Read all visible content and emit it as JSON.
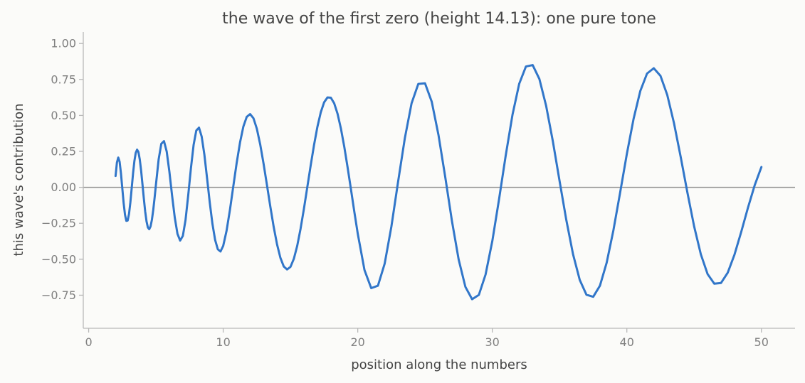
{
  "chart_data": {
    "type": "line",
    "title": "the wave of the first zero (height 14.13): one pure tone",
    "xlabel": "position along the numbers",
    "ylabel": "this wave's contribution",
    "xlim": [
      -0.4,
      52.5
    ],
    "ylim": [
      -0.98,
      1.08
    ],
    "xticks": [
      0,
      10,
      20,
      30,
      40,
      50
    ],
    "xtick_labels": [
      "0",
      "10",
      "20",
      "30",
      "40",
      "50"
    ],
    "yticks": [
      1.0,
      0.75,
      0.5,
      0.25,
      0.0,
      -0.25,
      -0.5,
      -0.75
    ],
    "ytick_labels": [
      "1.00",
      "0.75",
      "0.50",
      "0.25",
      "0.00",
      "−0.25",
      "−0.50",
      "−0.75"
    ],
    "reference_line": {
      "y": 0,
      "color": "#909090"
    },
    "grid": false,
    "series": [
      {
        "color": "#3176c9",
        "x": [
          2.0,
          2.1,
          2.2,
          2.3,
          2.4,
          2.5,
          2.6,
          2.7,
          2.8,
          2.9,
          3.0,
          3.1,
          3.2,
          3.3,
          3.4,
          3.5,
          3.6,
          3.7,
          3.8,
          3.9,
          4.0,
          4.1,
          4.2,
          4.3,
          4.4,
          4.5,
          4.6,
          4.7,
          4.8,
          4.9,
          5.0,
          5.2,
          5.4,
          5.6,
          5.8,
          6.0,
          6.2,
          6.4,
          6.6,
          6.8,
          7.0,
          7.2,
          7.4,
          7.6,
          7.8,
          8.0,
          8.2,
          8.4,
          8.6,
          8.8,
          9.0,
          9.2,
          9.4,
          9.6,
          9.8,
          10.0,
          10.25,
          10.5,
          10.75,
          11.0,
          11.25,
          11.5,
          11.75,
          12.0,
          12.25,
          12.5,
          12.75,
          13.0,
          13.25,
          13.5,
          13.75,
          14.0,
          14.25,
          14.5,
          14.75,
          15.0,
          15.25,
          15.5,
          15.75,
          16.0,
          16.25,
          16.5,
          16.75,
          17.0,
          17.25,
          17.5,
          17.75,
          18.0,
          18.25,
          18.5,
          18.75,
          19.0,
          19.25,
          19.5,
          19.75,
          20.0,
          20.5,
          21.0,
          21.5,
          22.0,
          22.5,
          23.0,
          23.5,
          24.0,
          24.5,
          25.0,
          25.5,
          26.0,
          26.5,
          27.0,
          27.5,
          28.0,
          28.5,
          29.0,
          29.5,
          30.0,
          30.5,
          31.0,
          31.5,
          32.0,
          32.5,
          33.0,
          33.5,
          34.0,
          34.5,
          35.0,
          35.5,
          36.0,
          36.5,
          37.0,
          37.5,
          38.0,
          38.5,
          39.0,
          39.5,
          40.0,
          40.5,
          41.0,
          41.5,
          42.0,
          42.5,
          43.0,
          43.5,
          44.0,
          44.5,
          45.0,
          45.5,
          46.0,
          46.5,
          47.0,
          47.5,
          48.0,
          48.5,
          49.0,
          49.5,
          50.0
        ],
        "y": [
          0.079,
          0.172,
          0.207,
          0.178,
          0.098,
          -0.006,
          -0.109,
          -0.19,
          -0.233,
          -0.231,
          -0.185,
          -0.105,
          -0.005,
          0.097,
          0.183,
          0.24,
          0.262,
          0.245,
          0.193,
          0.115,
          0.02,
          -0.077,
          -0.167,
          -0.236,
          -0.279,
          -0.291,
          -0.272,
          -0.226,
          -0.158,
          -0.074,
          0.018,
          0.193,
          0.303,
          0.321,
          0.249,
          0.109,
          -0.057,
          -0.21,
          -0.323,
          -0.37,
          -0.338,
          -0.227,
          -0.055,
          0.132,
          0.295,
          0.395,
          0.415,
          0.353,
          0.228,
          0.064,
          -0.105,
          -0.254,
          -0.366,
          -0.431,
          -0.446,
          -0.407,
          -0.302,
          -0.157,
          0.007,
          0.169,
          0.312,
          0.423,
          0.49,
          0.509,
          0.48,
          0.407,
          0.298,
          0.164,
          0.017,
          -0.133,
          -0.274,
          -0.396,
          -0.49,
          -0.55,
          -0.571,
          -0.553,
          -0.497,
          -0.407,
          -0.288,
          -0.149,
          0.001,
          0.151,
          0.294,
          0.42,
          0.521,
          0.591,
          0.625,
          0.623,
          0.584,
          0.511,
          0.408,
          0.281,
          0.136,
          -0.017,
          -0.173,
          -0.322,
          -0.575,
          -0.701,
          -0.684,
          -0.531,
          -0.273,
          0.04,
          0.342,
          0.584,
          0.719,
          0.723,
          0.595,
          0.364,
          0.073,
          -0.234,
          -0.502,
          -0.692,
          -0.778,
          -0.748,
          -0.606,
          -0.374,
          -0.084,
          0.223,
          0.504,
          0.72,
          0.84,
          0.85,
          0.753,
          0.567,
          0.32,
          0.044,
          -0.227,
          -0.465,
          -0.644,
          -0.747,
          -0.761,
          -0.684,
          -0.524,
          -0.299,
          -0.037,
          0.232,
          0.476,
          0.67,
          0.791,
          0.828,
          0.775,
          0.643,
          0.448,
          0.212,
          -0.036,
          -0.271,
          -0.466,
          -0.603,
          -0.67,
          -0.665,
          -0.593,
          -0.468,
          -0.31,
          -0.142,
          0.014,
          0.141
        ]
      }
    ]
  }
}
